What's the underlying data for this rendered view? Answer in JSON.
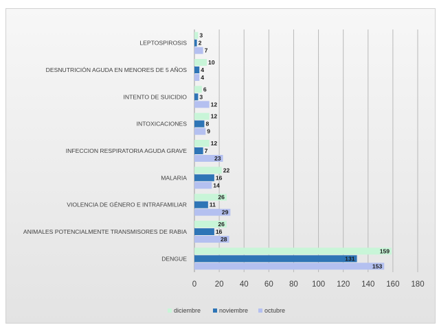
{
  "chart_data": {
    "type": "bar",
    "orientation": "horizontal",
    "categories": [
      "LEPTOSPIROSIS",
      "DESNUTRICIÓN AGUDA EN MENORES DE 5 AÑOS",
      "INTENTO DE SUICIDIO",
      "INTOXICACIONES",
      "INFECCION RESPIRATORIA AGUDA GRAVE",
      "MALARIA",
      "VIOLENCIA DE GÉNERO E INTRAFAMILIAR",
      "ANIMALES POTENCIALMENTE TRANSMISORES DE RABIA",
      "DENGUE"
    ],
    "series": [
      {
        "name": "diciembre",
        "color": "#c8f5d8",
        "values": [
          3,
          10,
          6,
          12,
          12,
          22,
          26,
          26,
          159
        ]
      },
      {
        "name": "noviembre",
        "color": "#2e75b6",
        "values": [
          2,
          4,
          3,
          8,
          7,
          16,
          11,
          16,
          131
        ]
      },
      {
        "name": "octubre",
        "color": "#b4c0f0",
        "values": [
          7,
          4,
          12,
          9,
          23,
          14,
          29,
          28,
          153
        ]
      }
    ],
    "xlim": [
      0,
      180
    ],
    "xticks": [
      0,
      20,
      40,
      60,
      80,
      100,
      120,
      140,
      160,
      180
    ],
    "grid": "vertical",
    "legend_position": "bottom",
    "data_labels": true
  }
}
